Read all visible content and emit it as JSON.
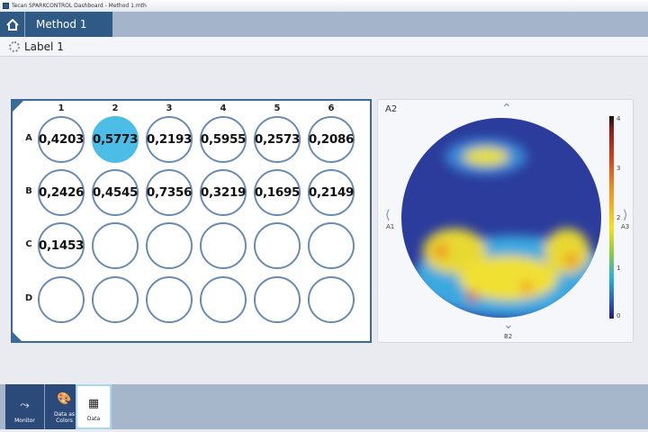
{
  "window": {
    "title": "Tecan SPARKCONTROL Dashboard - Method 1.mth"
  },
  "nav": {
    "tab_label": "Method 1"
  },
  "label_row": {
    "label": "Label 1"
  },
  "plate": {
    "columns": [
      "1",
      "2",
      "3",
      "4",
      "5",
      "6"
    ],
    "rows": [
      "A",
      "B",
      "C",
      "D"
    ],
    "selected": "A2",
    "wells": [
      [
        "0,4203",
        "0,5773",
        "0,2193",
        "0,5955",
        "0,2573",
        "0,2086"
      ],
      [
        "0,2426",
        "0,4545",
        "0,7356",
        "0,3219",
        "0,1695",
        "0,2149"
      ],
      [
        "0,1453",
        "",
        "",
        "",
        "",
        ""
      ],
      [
        "",
        "",
        "",
        "",
        "",
        ""
      ]
    ]
  },
  "heatmap": {
    "title": "A2",
    "left": "A1",
    "right": "A3",
    "down": "B2",
    "scale_ticks": [
      "4",
      "3",
      "2",
      "1",
      "0"
    ]
  },
  "bottom": {
    "tabs": [
      {
        "label": "Monitor"
      },
      {
        "label": "Data as Colors"
      },
      {
        "label": "Data"
      }
    ],
    "active": "Data"
  },
  "colors": {
    "accent": "#2f5a85",
    "selected_well": "#4cbde6"
  }
}
